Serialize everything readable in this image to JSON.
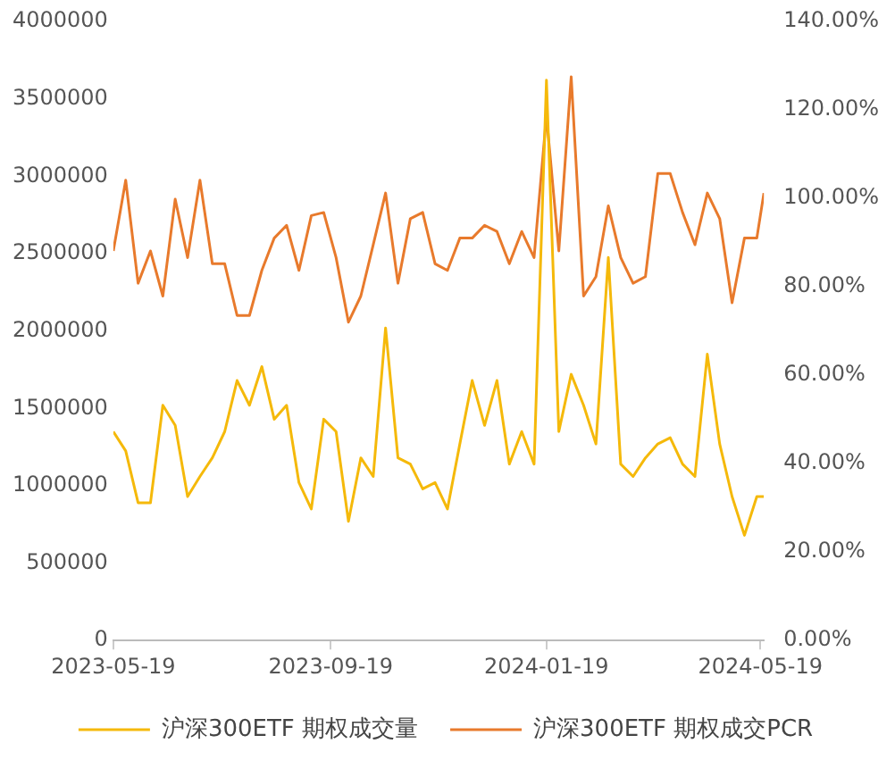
{
  "chart_data": {
    "type": "line",
    "x": [
      "2023-05-19",
      "2023-05-26",
      "2023-06-02",
      "2023-06-09",
      "2023-06-16",
      "2023-06-23",
      "2023-06-30",
      "2023-07-07",
      "2023-07-14",
      "2023-07-21",
      "2023-07-28",
      "2023-08-04",
      "2023-08-11",
      "2023-08-18",
      "2023-08-25",
      "2023-09-01",
      "2023-09-08",
      "2023-09-15",
      "2023-09-22",
      "2023-09-29",
      "2023-10-06",
      "2023-10-13",
      "2023-10-20",
      "2023-10-27",
      "2023-11-03",
      "2023-11-10",
      "2023-11-17",
      "2023-11-24",
      "2023-12-01",
      "2023-12-08",
      "2023-12-15",
      "2023-12-22",
      "2023-12-29",
      "2024-01-05",
      "2024-01-12",
      "2024-01-19",
      "2024-01-26",
      "2024-02-02",
      "2024-02-09",
      "2024-02-16",
      "2024-02-23",
      "2024-03-01",
      "2024-03-08",
      "2024-03-15",
      "2024-03-22",
      "2024-03-29",
      "2024-04-05",
      "2024-04-12",
      "2024-04-19",
      "2024-04-26",
      "2024-05-03",
      "2024-05-10",
      "2024-05-17",
      "2024-05-21"
    ],
    "series": [
      {
        "name": "沪深300ETF 期权成交量",
        "color": "#f5b90a",
        "values": [
          1350000,
          1225000,
          890000,
          890000,
          1520000,
          1390000,
          930000,
          1060000,
          1180000,
          1350000,
          1680000,
          1520000,
          1770000,
          1430000,
          1520000,
          1020000,
          850000,
          1430000,
          1350000,
          770000,
          1180000,
          1060000,
          2020000,
          1180000,
          1140000,
          980000,
          1020000,
          850000,
          1270000,
          1680000,
          1390000,
          1680000,
          1140000,
          1350000,
          1140000,
          3620000,
          1350000,
          1720000,
          1520000,
          1270000,
          2475000,
          1140000,
          1060000,
          1180000,
          1270000,
          1310000,
          1140000,
          1060000,
          1850000,
          1270000,
          930000,
          680000,
          930000,
          930000
        ]
      },
      {
        "name": "沪深300ETF 期权成交PCR",
        "color": "#e87a2c",
        "axis": "y2",
        "values": [
          88.1,
          104.1,
          80.8,
          88.1,
          77.9,
          99.8,
          86.6,
          104.1,
          85.2,
          85.2,
          73.5,
          73.5,
          83.7,
          91.0,
          93.9,
          83.7,
          96.1,
          96.8,
          86.6,
          72.0,
          77.9,
          89.5,
          101.2,
          80.8,
          95.4,
          96.8,
          85.2,
          83.7,
          91.0,
          91.0,
          93.9,
          92.5,
          85.2,
          92.5,
          86.6,
          118.7,
          88.1,
          127.5,
          77.9,
          82.3,
          98.3,
          86.6,
          80.8,
          82.3,
          105.6,
          105.6,
          96.8,
          89.5,
          101.2,
          95.4,
          76.4,
          91.0,
          91.0,
          101.2
        ]
      }
    ],
    "xlim": [
      "2023-05-19",
      "2024-05-21"
    ],
    "xticks": [
      "2023-05-19",
      "2023-09-19",
      "2024-01-19",
      "2024-05-19"
    ],
    "ylim": [
      0,
      4000000
    ],
    "yticks": [
      0,
      500000,
      1000000,
      1500000,
      2000000,
      2500000,
      3000000,
      3500000,
      4000000
    ],
    "y2lim": [
      0,
      140
    ],
    "y2ticks": [
      {
        "value": 0,
        "label": "0.00%"
      },
      {
        "value": 20,
        "label": "20.00%"
      },
      {
        "value": 40,
        "label": "40.00%"
      },
      {
        "value": 60,
        "label": "60.00%"
      },
      {
        "value": 80,
        "label": "80.00%"
      },
      {
        "value": 100,
        "label": "100.00%"
      },
      {
        "value": 120,
        "label": "120.00%"
      },
      {
        "value": 140,
        "label": "140.00%"
      }
    ],
    "legend": "bottom",
    "grid": false,
    "marker": "none",
    "line_style": "solid"
  }
}
